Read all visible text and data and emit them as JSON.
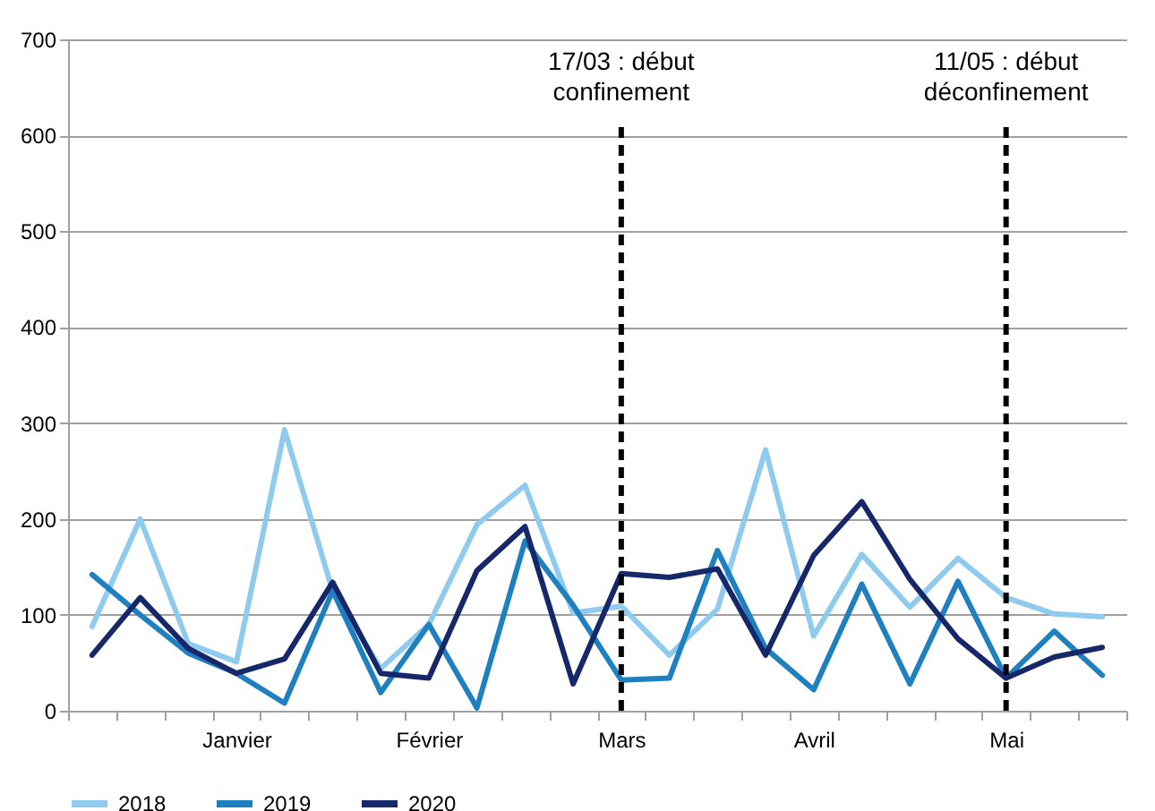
{
  "chart_data": {
    "type": "line",
    "categories": [
      null,
      null,
      null,
      "Janvier",
      null,
      null,
      null,
      "Février",
      null,
      null,
      null,
      "Mars",
      null,
      null,
      null,
      "Avril",
      null,
      null,
      null,
      "Mai",
      null,
      null
    ],
    "series": [
      {
        "name": "2018",
        "color": "#8ecbee",
        "values": [
          88,
          200,
          70,
          51,
          293,
          125,
          44,
          90,
          194,
          235,
          102,
          109,
          58,
          106,
          272,
          78,
          163,
          108,
          159,
          118,
          101,
          98
        ]
      },
      {
        "name": "2019",
        "color": "#1f80c0",
        "values": [
          142,
          100,
          60,
          39,
          8,
          125,
          19,
          90,
          3,
          177,
          110,
          32,
          34,
          167,
          65,
          22,
          132,
          28,
          135,
          34,
          83,
          37
        ]
      },
      {
        "name": "2020",
        "color": "#17286a",
        "values": [
          58,
          118,
          65,
          39,
          54,
          134,
          39,
          34,
          146,
          192,
          28,
          143,
          139,
          148,
          58,
          162,
          218,
          137,
          75,
          34,
          56,
          66
        ]
      }
    ],
    "ylim": [
      0,
      700
    ],
    "yticks": [
      0,
      100,
      200,
      300,
      400,
      500,
      600,
      700
    ],
    "grid": "y",
    "legend": "bottom",
    "marker": "none",
    "ref_lines": [
      {
        "axis": "x",
        "value": "Mars",
        "label": "17/03 : début\nconfinement",
        "color": "#000000",
        "line_style": "dashed"
      },
      {
        "axis": "x",
        "value": "Mai",
        "label": "11/05 : début\ndéconfinement",
        "color": "#000000",
        "line_style": "dashed"
      }
    ]
  }
}
